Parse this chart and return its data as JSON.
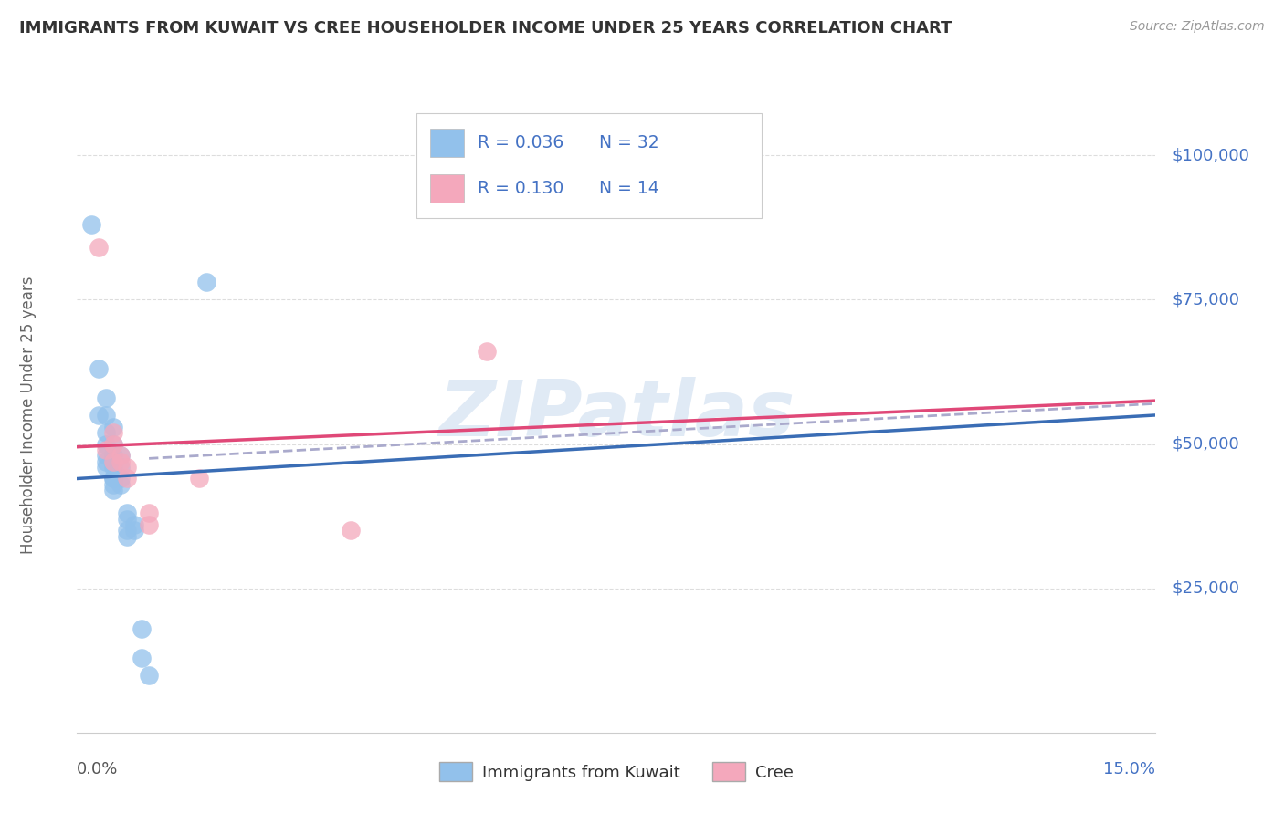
{
  "title": "IMMIGRANTS FROM KUWAIT VS CREE HOUSEHOLDER INCOME UNDER 25 YEARS CORRELATION CHART",
  "source": "Source: ZipAtlas.com",
  "ylabel": "Householder Income Under 25 years",
  "ytick_values": [
    25000,
    50000,
    75000,
    100000
  ],
  "ytick_labels": [
    "$25,000",
    "$50,000",
    "$75,000",
    "$100,000"
  ],
  "xmin": 0.0,
  "xmax": 0.15,
  "ymin": 0,
  "ymax": 110000,
  "legend1_label": "Immigrants from Kuwait",
  "legend2_label": "Cree",
  "R1": "0.036",
  "N1": "32",
  "R2": "0.130",
  "N2": "14",
  "blue_color": "#92C1EB",
  "pink_color": "#F4A8BC",
  "trend_blue": "#3A6DB5",
  "trend_pink": "#E04878",
  "trend_dash_color": "#AAAACC",
  "watermark": "ZIPatlas",
  "watermark_color": "#D0DFF0",
  "blue_points_x": [
    0.002,
    0.003,
    0.003,
    0.004,
    0.004,
    0.004,
    0.004,
    0.004,
    0.004,
    0.004,
    0.005,
    0.005,
    0.005,
    0.005,
    0.005,
    0.005,
    0.005,
    0.005,
    0.006,
    0.006,
    0.006,
    0.006,
    0.007,
    0.007,
    0.007,
    0.007,
    0.008,
    0.008,
    0.009,
    0.009,
    0.01,
    0.018
  ],
  "blue_points_y": [
    88000,
    63000,
    55000,
    58000,
    55000,
    52000,
    50000,
    48000,
    47000,
    46000,
    53000,
    50000,
    48000,
    46000,
    44000,
    44000,
    43000,
    42000,
    48000,
    46000,
    44000,
    43000,
    38000,
    37000,
    35000,
    34000,
    36000,
    35000,
    18000,
    13000,
    10000,
    78000
  ],
  "pink_points_x": [
    0.003,
    0.004,
    0.005,
    0.005,
    0.005,
    0.006,
    0.006,
    0.007,
    0.007,
    0.01,
    0.01,
    0.017,
    0.038,
    0.057
  ],
  "pink_points_y": [
    84000,
    49000,
    52000,
    50000,
    47000,
    48000,
    47000,
    46000,
    44000,
    38000,
    36000,
    44000,
    35000,
    66000
  ],
  "title_color": "#333333",
  "source_color": "#999999",
  "axis_label_color": "#4472C4",
  "ylabel_color": "#666666",
  "grid_color": "#DDDDDD",
  "legend_color": "#4472C4"
}
